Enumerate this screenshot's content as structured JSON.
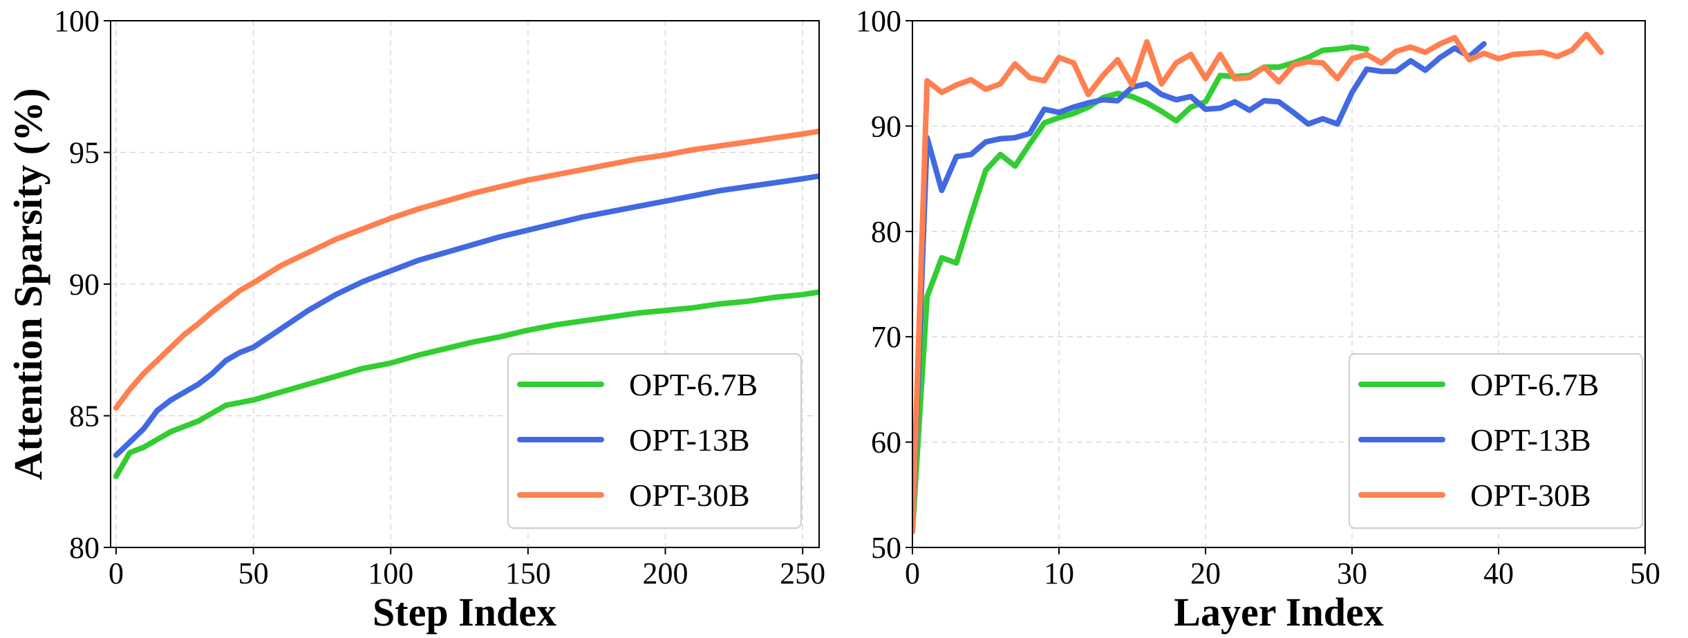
{
  "colors": {
    "OPT-6.7B": "#32cd32",
    "OPT-13B": "#4169e1",
    "OPT-30B": "#ff7f50"
  },
  "chart_data": [
    {
      "type": "line",
      "title": "",
      "xlabel": "Step Index",
      "ylabel": "Attention Sparsity (%)",
      "xlim": [
        -2,
        256
      ],
      "ylim": [
        80,
        100
      ],
      "xticks": [
        0,
        50,
        100,
        150,
        200,
        250
      ],
      "yticks": [
        80,
        85,
        90,
        95,
        100
      ],
      "grid": true,
      "legend_position": "lower-right",
      "series": [
        {
          "name": "OPT-6.7B",
          "x": [
            0,
            5,
            10,
            15,
            20,
            25,
            30,
            35,
            40,
            45,
            50,
            60,
            70,
            80,
            90,
            100,
            110,
            120,
            130,
            140,
            150,
            160,
            170,
            180,
            190,
            200,
            210,
            220,
            230,
            240,
            250,
            256
          ],
          "y": [
            82.7,
            83.6,
            83.8,
            84.1,
            84.4,
            84.6,
            84.8,
            85.1,
            85.4,
            85.5,
            85.6,
            85.9,
            86.2,
            86.5,
            86.8,
            87.0,
            87.3,
            87.55,
            87.8,
            88.0,
            88.25,
            88.45,
            88.6,
            88.75,
            88.9,
            89.0,
            89.1,
            89.25,
            89.35,
            89.5,
            89.6,
            89.7
          ]
        },
        {
          "name": "OPT-13B",
          "x": [
            0,
            5,
            10,
            15,
            20,
            25,
            30,
            35,
            40,
            45,
            50,
            60,
            70,
            80,
            90,
            100,
            110,
            120,
            130,
            140,
            150,
            160,
            170,
            180,
            190,
            200,
            210,
            220,
            230,
            240,
            250,
            256
          ],
          "y": [
            83.5,
            84.0,
            84.5,
            85.2,
            85.6,
            85.9,
            86.2,
            86.6,
            87.1,
            87.4,
            87.6,
            88.3,
            89.0,
            89.6,
            90.1,
            90.5,
            90.9,
            91.2,
            91.5,
            91.8,
            92.05,
            92.3,
            92.55,
            92.75,
            92.95,
            93.15,
            93.35,
            93.55,
            93.7,
            93.85,
            94.0,
            94.1
          ]
        },
        {
          "name": "OPT-30B",
          "x": [
            0,
            5,
            10,
            15,
            20,
            25,
            30,
            35,
            40,
            45,
            50,
            60,
            70,
            80,
            90,
            100,
            110,
            120,
            130,
            140,
            150,
            160,
            170,
            180,
            190,
            200,
            210,
            220,
            230,
            240,
            250,
            256
          ],
          "y": [
            85.3,
            86.0,
            86.6,
            87.1,
            87.6,
            88.1,
            88.5,
            88.95,
            89.35,
            89.75,
            90.05,
            90.7,
            91.2,
            91.7,
            92.1,
            92.5,
            92.85,
            93.15,
            93.45,
            93.7,
            93.95,
            94.15,
            94.35,
            94.55,
            94.75,
            94.9,
            95.1,
            95.25,
            95.4,
            95.55,
            95.7,
            95.8
          ]
        }
      ]
    },
    {
      "type": "line",
      "title": "",
      "xlabel": "Layer Index",
      "ylabel": "",
      "xlim": [
        0,
        50
      ],
      "ylim": [
        50,
        100
      ],
      "xticks": [
        0,
        10,
        20,
        30,
        40,
        50
      ],
      "yticks": [
        50,
        60,
        70,
        80,
        90,
        100
      ],
      "grid": true,
      "legend_position": "lower-right",
      "series": [
        {
          "name": "OPT-6.7B",
          "x": [
            0,
            1,
            2,
            3,
            4,
            5,
            6,
            7,
            8,
            9,
            10,
            11,
            12,
            13,
            14,
            15,
            16,
            17,
            18,
            19,
            20,
            21,
            22,
            23,
            24,
            25,
            26,
            27,
            28,
            29,
            30,
            31
          ],
          "y": [
            51.5,
            73.8,
            77.5,
            77.0,
            81.5,
            85.8,
            87.3,
            86.2,
            88.3,
            90.3,
            90.8,
            91.2,
            91.8,
            92.7,
            93.1,
            92.8,
            92.2,
            91.4,
            90.5,
            91.8,
            92.3,
            94.8,
            94.7,
            94.8,
            95.6,
            95.6,
            96.0,
            96.5,
            97.2,
            97.3,
            97.5,
            97.3
          ]
        },
        {
          "name": "OPT-13B",
          "x": [
            0,
            1,
            2,
            3,
            4,
            5,
            6,
            7,
            8,
            9,
            10,
            11,
            12,
            13,
            14,
            15,
            16,
            17,
            18,
            19,
            20,
            21,
            22,
            23,
            24,
            25,
            26,
            27,
            28,
            29,
            30,
            31,
            32,
            33,
            34,
            35,
            36,
            37,
            38,
            39
          ],
          "y": [
            51.5,
            88.9,
            83.9,
            87.1,
            87.3,
            88.5,
            88.8,
            88.9,
            89.3,
            91.6,
            91.3,
            91.8,
            92.2,
            92.5,
            92.4,
            93.7,
            94.0,
            93.0,
            92.5,
            92.8,
            91.6,
            91.7,
            92.3,
            91.5,
            92.4,
            92.3,
            91.3,
            90.2,
            90.7,
            90.2,
            93.2,
            95.4,
            95.2,
            95.2,
            96.2,
            95.3,
            96.5,
            97.4,
            96.6,
            97.8
          ]
        },
        {
          "name": "OPT-30B",
          "x": [
            0,
            1,
            2,
            3,
            4,
            5,
            6,
            7,
            8,
            9,
            10,
            11,
            12,
            13,
            14,
            15,
            16,
            17,
            18,
            19,
            20,
            21,
            22,
            23,
            24,
            25,
            26,
            27,
            28,
            29,
            30,
            31,
            32,
            33,
            34,
            35,
            36,
            37,
            38,
            39,
            40,
            41,
            42,
            43,
            44,
            45,
            46,
            47
          ],
          "y": [
            51.5,
            94.3,
            93.2,
            93.9,
            94.4,
            93.5,
            94.0,
            95.9,
            94.6,
            94.3,
            96.5,
            96.0,
            93.0,
            94.8,
            96.3,
            93.9,
            98.0,
            94.0,
            96.0,
            96.8,
            94.5,
            96.8,
            94.5,
            94.6,
            95.6,
            94.2,
            95.8,
            96.1,
            96.0,
            94.5,
            96.4,
            96.8,
            96.0,
            97.1,
            97.5,
            97.0,
            97.8,
            98.4,
            96.3,
            96.9,
            96.4,
            96.8,
            96.9,
            97.0,
            96.6,
            97.2,
            98.7,
            97.0
          ]
        }
      ]
    }
  ]
}
